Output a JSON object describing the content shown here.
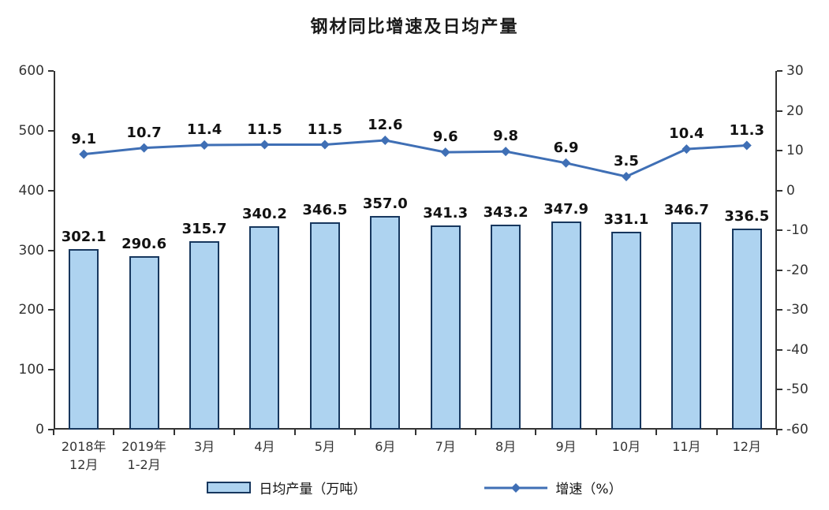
{
  "chart_data": {
    "type": "bar",
    "title": "钢材同比增速及日均产量",
    "categories": [
      "2018年\n12月",
      "2019年\n1-2月",
      "3月",
      "4月",
      "5月",
      "6月",
      "7月",
      "8月",
      "9月",
      "10月",
      "11月",
      "12月"
    ],
    "series": [
      {
        "name": "日均产量（万吨）",
        "type": "bar",
        "axis": "left",
        "values": [
          302.1,
          290.6,
          315.7,
          340.2,
          346.5,
          357.0,
          341.3,
          343.2,
          347.9,
          331.1,
          346.7,
          336.5
        ]
      },
      {
        "name": "增速（%）",
        "type": "line",
        "axis": "right",
        "values": [
          9.1,
          10.7,
          11.4,
          11.5,
          11.5,
          12.6,
          9.6,
          9.8,
          6.9,
          3.5,
          10.4,
          11.3
        ]
      }
    ],
    "left_axis": {
      "min": 0,
      "max": 600,
      "step": 100
    },
    "right_axis": {
      "min": -60,
      "max": 30,
      "step": 10
    },
    "grid": false,
    "legend_position": "bottom",
    "colors": {
      "bar_fill": "#aed3f0",
      "bar_border": "#17375e",
      "line": "#3f6fb5",
      "axis_text": "#333333",
      "label_text": "#111111"
    }
  }
}
